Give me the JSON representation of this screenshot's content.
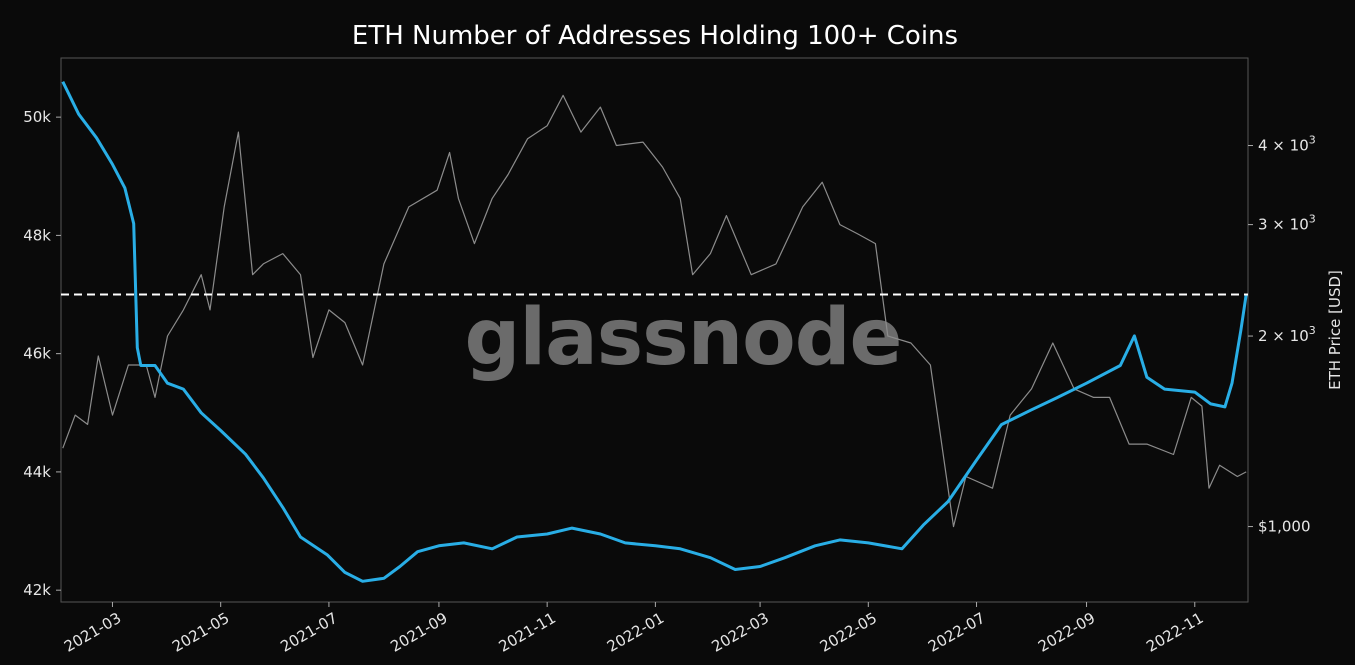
{
  "chart_data": {
    "type": "line",
    "title": "ETH Number of Addresses Holding 100+ Coins",
    "watermark": "glassnode",
    "ylabel_right": "ETH Price [USD]",
    "x_ticks": [
      "2021-03",
      "2021-05",
      "2021-07",
      "2021-09",
      "2021-11",
      "2022-01",
      "2022-03",
      "2022-05",
      "2022-07",
      "2022-09",
      "2022-11"
    ],
    "y_left_ticks": [
      {
        "value": 42000,
        "label": "42k"
      },
      {
        "value": 44000,
        "label": "44k"
      },
      {
        "value": 46000,
        "label": "46k"
      },
      {
        "value": 48000,
        "label": "48k"
      },
      {
        "value": 50000,
        "label": "50k"
      }
    ],
    "y_right_ticks": [
      {
        "value": 1000,
        "label": "$1,000",
        "base": "",
        "exp": ""
      },
      {
        "value": 2000,
        "label": "",
        "base": "2 × 10",
        "exp": "3"
      },
      {
        "value": 3000,
        "label": "",
        "base": "3 × 10",
        "exp": "3"
      },
      {
        "value": 4000,
        "label": "",
        "base": "4 × 10",
        "exp": "3"
      }
    ],
    "y_left_range": [
      41800,
      51000
    ],
    "y_right_range": [
      760,
      5500
    ],
    "y_right_scale": "log",
    "x_range": [
      "2021-01-31",
      "2022-12-01"
    ],
    "reference_line": {
      "value": 47000,
      "style": "dashed",
      "color": "#ffffff"
    },
    "grid": false,
    "series": [
      {
        "axis": "left",
        "color": "#29aee6",
        "points": [
          [
            "2021-02-01",
            50600
          ],
          [
            "2021-02-10",
            50050
          ],
          [
            "2021-02-20",
            49650
          ],
          [
            "2021-03-01",
            49200
          ],
          [
            "2021-03-08",
            48800
          ],
          [
            "2021-03-13",
            48200
          ],
          [
            "2021-03-15",
            46100
          ],
          [
            "2021-03-17",
            45800
          ],
          [
            "2021-03-25",
            45800
          ],
          [
            "2021-04-01",
            45500
          ],
          [
            "2021-04-10",
            45400
          ],
          [
            "2021-04-20",
            45000
          ],
          [
            "2021-05-01",
            44700
          ],
          [
            "2021-05-15",
            44300
          ],
          [
            "2021-05-25",
            43900
          ],
          [
            "2021-06-05",
            43400
          ],
          [
            "2021-06-15",
            42900
          ],
          [
            "2021-06-30",
            42600
          ],
          [
            "2021-07-10",
            42300
          ],
          [
            "2021-07-20",
            42150
          ],
          [
            "2021-08-01",
            42200
          ],
          [
            "2021-08-10",
            42400
          ],
          [
            "2021-08-20",
            42650
          ],
          [
            "2021-09-01",
            42750
          ],
          [
            "2021-09-15",
            42800
          ],
          [
            "2021-10-01",
            42700
          ],
          [
            "2021-10-15",
            42900
          ],
          [
            "2021-11-01",
            42950
          ],
          [
            "2021-11-15",
            43050
          ],
          [
            "2021-12-01",
            42950
          ],
          [
            "2021-12-15",
            42800
          ],
          [
            "2022-01-01",
            42750
          ],
          [
            "2022-01-15",
            42700
          ],
          [
            "2022-02-01",
            42550
          ],
          [
            "2022-02-15",
            42350
          ],
          [
            "2022-03-01",
            42400
          ],
          [
            "2022-03-15",
            42550
          ],
          [
            "2022-04-01",
            42750
          ],
          [
            "2022-04-15",
            42850
          ],
          [
            "2022-05-01",
            42800
          ],
          [
            "2022-05-20",
            42700
          ],
          [
            "2022-06-01",
            43100
          ],
          [
            "2022-06-15",
            43500
          ],
          [
            "2022-07-01",
            44200
          ],
          [
            "2022-07-15",
            44800
          ],
          [
            "2022-08-01",
            45050
          ],
          [
            "2022-08-15",
            45250
          ],
          [
            "2022-09-01",
            45500
          ],
          [
            "2022-09-20",
            45800
          ],
          [
            "2022-09-28",
            46300
          ],
          [
            "2022-10-05",
            45600
          ],
          [
            "2022-10-15",
            45400
          ],
          [
            "2022-11-01",
            45350
          ],
          [
            "2022-11-10",
            45150
          ],
          [
            "2022-11-18",
            45100
          ],
          [
            "2022-11-22",
            45500
          ],
          [
            "2022-11-27",
            46400
          ],
          [
            "2022-11-30",
            47000
          ]
        ]
      },
      {
        "axis": "right",
        "color": "#8c8c8c",
        "points": [
          [
            "2021-02-01",
            1330
          ],
          [
            "2021-02-08",
            1500
          ],
          [
            "2021-02-15",
            1450
          ],
          [
            "2021-02-21",
            1860
          ],
          [
            "2021-03-01",
            1500
          ],
          [
            "2021-03-10",
            1800
          ],
          [
            "2021-03-20",
            1800
          ],
          [
            "2021-03-25",
            1600
          ],
          [
            "2021-04-01",
            2000
          ],
          [
            "2021-04-10",
            2200
          ],
          [
            "2021-04-20",
            2500
          ],
          [
            "2021-04-25",
            2200
          ],
          [
            "2021-05-03",
            3200
          ],
          [
            "2021-05-11",
            4200
          ],
          [
            "2021-05-19",
            2500
          ],
          [
            "2021-05-25",
            2600
          ],
          [
            "2021-06-05",
            2700
          ],
          [
            "2021-06-15",
            2500
          ],
          [
            "2021-06-22",
            1850
          ],
          [
            "2021-07-01",
            2200
          ],
          [
            "2021-07-10",
            2100
          ],
          [
            "2021-07-20",
            1800
          ],
          [
            "2021-08-01",
            2600
          ],
          [
            "2021-08-15",
            3200
          ],
          [
            "2021-08-31",
            3400
          ],
          [
            "2021-09-07",
            3900
          ],
          [
            "2021-09-12",
            3300
          ],
          [
            "2021-09-21",
            2800
          ],
          [
            "2021-10-01",
            3300
          ],
          [
            "2021-10-10",
            3600
          ],
          [
            "2021-10-21",
            4100
          ],
          [
            "2021-11-01",
            4300
          ],
          [
            "2021-11-10",
            4800
          ],
          [
            "2021-11-20",
            4200
          ],
          [
            "2021-12-01",
            4600
          ],
          [
            "2021-12-10",
            4000
          ],
          [
            "2021-12-25",
            4050
          ],
          [
            "2022-01-05",
            3700
          ],
          [
            "2022-01-15",
            3300
          ],
          [
            "2022-01-22",
            2500
          ],
          [
            "2022-02-01",
            2700
          ],
          [
            "2022-02-10",
            3100
          ],
          [
            "2022-02-24",
            2500
          ],
          [
            "2022-03-10",
            2600
          ],
          [
            "2022-03-25",
            3200
          ],
          [
            "2022-04-05",
            3500
          ],
          [
            "2022-04-15",
            3000
          ],
          [
            "2022-04-25",
            2900
          ],
          [
            "2022-05-05",
            2800
          ],
          [
            "2022-05-12",
            2000
          ],
          [
            "2022-05-25",
            1950
          ],
          [
            "2022-06-05",
            1800
          ],
          [
            "2022-06-18",
            1000
          ],
          [
            "2022-06-25",
            1200
          ],
          [
            "2022-07-10",
            1150
          ],
          [
            "2022-07-20",
            1500
          ],
          [
            "2022-08-01",
            1650
          ],
          [
            "2022-08-13",
            1950
          ],
          [
            "2022-08-25",
            1650
          ],
          [
            "2022-09-05",
            1600
          ],
          [
            "2022-09-14",
            1600
          ],
          [
            "2022-09-25",
            1350
          ],
          [
            "2022-10-05",
            1350
          ],
          [
            "2022-10-20",
            1300
          ],
          [
            "2022-10-30",
            1600
          ],
          [
            "2022-11-05",
            1550
          ],
          [
            "2022-11-09",
            1150
          ],
          [
            "2022-11-15",
            1250
          ],
          [
            "2022-11-25",
            1200
          ],
          [
            "2022-11-30",
            1220
          ]
        ]
      }
    ]
  }
}
